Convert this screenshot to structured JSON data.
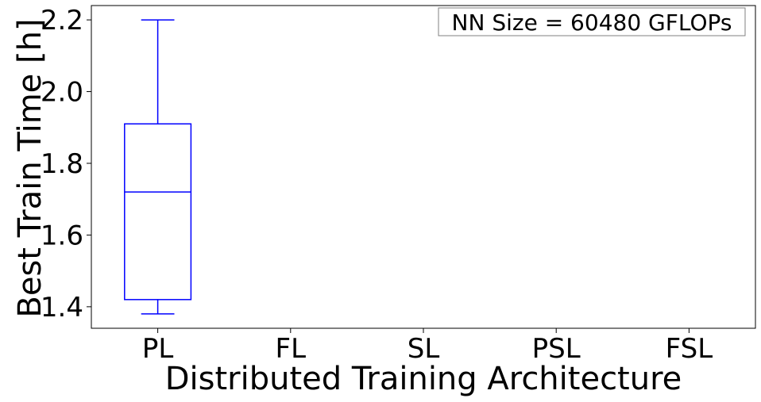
{
  "chart_data": {
    "type": "box",
    "xlabel": "Distributed Training Architecture",
    "ylabel": "Best Train Time [h]",
    "ylim": [
      1.34,
      2.24
    ],
    "yticks": [
      1.4,
      1.6,
      1.8,
      2.0,
      2.2
    ],
    "ytick_labels": [
      "1.4",
      "1.6",
      "1.8",
      "2.0",
      "2.2"
    ],
    "categories": [
      "PL",
      "FL",
      "SL",
      "PSL",
      "FSL"
    ],
    "boxes": [
      {
        "category": "PL",
        "whisker_low": 1.38,
        "q1": 1.42,
        "median": 1.72,
        "q3": 1.91,
        "whisker_high": 2.2
      }
    ],
    "box_color": "#0000ff",
    "grid": false,
    "annotation": "NN Size = 60480 GFLOPs",
    "annotation_position": "top-right"
  }
}
